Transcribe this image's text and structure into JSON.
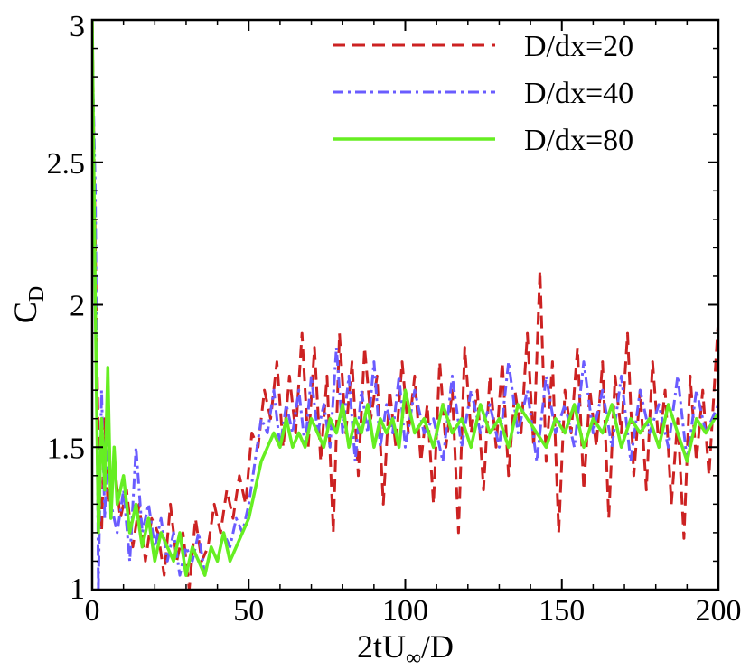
{
  "chart_data": {
    "type": "line",
    "title": "",
    "xlabel": "2tU∞/D",
    "ylabel": "CD",
    "ylabel_main": "C",
    "ylabel_sub": "D",
    "xlabel_prefix": "2tU",
    "xlabel_sub": "∞",
    "xlabel_suffix": "/D",
    "xlim": [
      0,
      200
    ],
    "ylim": [
      1,
      3
    ],
    "x_ticks": [
      0,
      50,
      100,
      150,
      200
    ],
    "x_tick_labels": [
      "0",
      "50",
      "100",
      "150",
      "200"
    ],
    "y_ticks": [
      1,
      1.5,
      2,
      2.5,
      3
    ],
    "y_tick_labels": [
      "1",
      "1.5",
      "2",
      "2.5",
      "3"
    ],
    "grid": false,
    "legend_position": "top-right",
    "series": [
      {
        "name": "D/dx=20",
        "color": "#cc2222",
        "style": "dashed",
        "x": [
          0,
          1,
          2,
          3,
          4,
          5,
          7,
          9,
          11,
          13,
          15,
          17,
          19,
          21,
          23,
          25,
          27,
          29,
          31,
          33,
          35,
          37,
          39,
          41,
          43,
          45,
          47,
          49,
          51,
          53,
          55,
          57,
          59,
          61,
          63,
          65,
          67,
          69,
          71,
          73,
          75,
          77,
          79,
          81,
          83,
          85,
          87,
          89,
          91,
          93,
          95,
          97,
          99,
          101,
          103,
          105,
          107,
          109,
          111,
          113,
          115,
          117,
          119,
          121,
          123,
          125,
          127,
          129,
          131,
          133,
          135,
          137,
          139,
          141,
          143,
          145,
          147,
          149,
          151,
          153,
          155,
          157,
          159,
          161,
          163,
          165,
          167,
          169,
          171,
          173,
          175,
          177,
          179,
          181,
          183,
          185,
          187,
          189,
          191,
          193,
          195,
          197,
          200
        ],
        "y": [
          3.0,
          2.2,
          1.5,
          1.2,
          1.6,
          1.3,
          1.45,
          1.25,
          1.35,
          1.15,
          1.3,
          1.1,
          1.25,
          1.2,
          1.05,
          1.3,
          1.1,
          1.2,
          1.0,
          1.25,
          1.1,
          1.15,
          1.3,
          1.2,
          1.35,
          1.25,
          1.4,
          1.3,
          1.55,
          1.5,
          1.7,
          1.6,
          1.8,
          1.5,
          1.75,
          1.55,
          1.9,
          1.5,
          1.85,
          1.45,
          1.75,
          1.2,
          1.9,
          1.55,
          1.8,
          1.4,
          1.85,
          1.6,
          1.75,
          1.3,
          1.7,
          1.5,
          1.8,
          1.55,
          1.75,
          1.45,
          1.65,
          1.3,
          1.8,
          1.5,
          1.7,
          1.2,
          1.85,
          1.55,
          1.7,
          1.35,
          1.75,
          1.5,
          1.8,
          1.4,
          1.7,
          1.55,
          1.9,
          1.5,
          2.12,
          1.45,
          1.8,
          1.2,
          1.7,
          1.55,
          1.85,
          1.35,
          1.7,
          1.5,
          1.8,
          1.25,
          1.75,
          1.55,
          1.9,
          1.4,
          1.7,
          1.35,
          1.8,
          1.5,
          1.7,
          1.3,
          1.6,
          1.18,
          1.75,
          1.45,
          1.7,
          1.4,
          1.95
        ]
      },
      {
        "name": "D/dx=40",
        "color": "#6a5cff",
        "style": "dashdot",
        "x": [
          0,
          1,
          2,
          3,
          4,
          5,
          6,
          8,
          10,
          12,
          14,
          16,
          18,
          20,
          22,
          24,
          26,
          28,
          30,
          32,
          34,
          36,
          38,
          40,
          42,
          44,
          46,
          48,
          50,
          52,
          54,
          56,
          58,
          60,
          62,
          64,
          66,
          68,
          70,
          72,
          74,
          76,
          78,
          80,
          82,
          84,
          86,
          88,
          90,
          92,
          94,
          96,
          98,
          100,
          103,
          106,
          109,
          112,
          115,
          118,
          121,
          124,
          127,
          130,
          133,
          136,
          139,
          142,
          145,
          148,
          151,
          154,
          157,
          160,
          163,
          166,
          169,
          172,
          175,
          178,
          181,
          184,
          187,
          190,
          193,
          196,
          200
        ],
        "y": [
          2.9,
          2.4,
          1.0,
          1.7,
          1.25,
          1.55,
          1.3,
          1.2,
          1.35,
          1.1,
          1.5,
          1.2,
          1.3,
          1.15,
          1.25,
          1.1,
          1.2,
          1.05,
          1.15,
          1.1,
          1.2,
          1.05,
          1.15,
          1.1,
          1.2,
          1.15,
          1.25,
          1.2,
          1.3,
          1.45,
          1.6,
          1.55,
          1.7,
          1.5,
          1.65,
          1.55,
          1.7,
          1.5,
          1.75,
          1.55,
          1.65,
          1.5,
          1.85,
          1.55,
          1.75,
          1.45,
          1.7,
          1.55,
          1.8,
          1.5,
          1.65,
          1.55,
          1.75,
          1.5,
          1.7,
          1.55,
          1.6,
          1.45,
          1.75,
          1.5,
          1.7,
          1.55,
          1.65,
          1.5,
          1.8,
          1.55,
          1.7,
          1.45,
          1.75,
          1.55,
          1.65,
          1.5,
          1.8,
          1.55,
          1.7,
          1.5,
          1.75,
          1.45,
          1.7,
          1.55,
          1.65,
          1.5,
          1.75,
          1.45,
          1.7,
          1.55,
          1.65
        ]
      },
      {
        "name": "D/dx=80",
        "color": "#66ee22",
        "style": "solid",
        "x": [
          0,
          1,
          2,
          3,
          4,
          5,
          6,
          7,
          8,
          10,
          12,
          14,
          16,
          18,
          20,
          22,
          24,
          26,
          28,
          30,
          32,
          34,
          36,
          38,
          40,
          42,
          44,
          46,
          48,
          50,
          52,
          54,
          56,
          58,
          60,
          62,
          64,
          66,
          68,
          70,
          72,
          74,
          76,
          78,
          80,
          82,
          84,
          86,
          88,
          90,
          92,
          94,
          96,
          98,
          100,
          103,
          106,
          109,
          112,
          115,
          118,
          121,
          124,
          127,
          130,
          133,
          136,
          139,
          142,
          145,
          148,
          151,
          154,
          157,
          160,
          163,
          166,
          169,
          172,
          175,
          178,
          181,
          184,
          187,
          190,
          193,
          196,
          200
        ],
        "y": [
          3.0,
          2.0,
          1.2,
          1.6,
          1.35,
          1.78,
          1.25,
          1.5,
          1.3,
          1.4,
          1.2,
          1.3,
          1.15,
          1.25,
          1.1,
          1.2,
          1.15,
          1.1,
          1.2,
          1.05,
          1.15,
          1.1,
          1.05,
          1.15,
          1.1,
          1.2,
          1.1,
          1.15,
          1.2,
          1.25,
          1.35,
          1.45,
          1.5,
          1.55,
          1.5,
          1.6,
          1.5,
          1.55,
          1.5,
          1.6,
          1.55,
          1.5,
          1.6,
          1.55,
          1.65,
          1.5,
          1.6,
          1.55,
          1.65,
          1.5,
          1.6,
          1.55,
          1.6,
          1.5,
          1.7,
          1.55,
          1.6,
          1.5,
          1.65,
          1.55,
          1.6,
          1.5,
          1.65,
          1.55,
          1.6,
          1.5,
          1.65,
          1.6,
          1.55,
          1.5,
          1.6,
          1.55,
          1.65,
          1.5,
          1.6,
          1.55,
          1.65,
          1.5,
          1.6,
          1.55,
          1.6,
          1.5,
          1.65,
          1.55,
          1.45,
          1.6,
          1.55,
          1.62
        ]
      }
    ]
  }
}
